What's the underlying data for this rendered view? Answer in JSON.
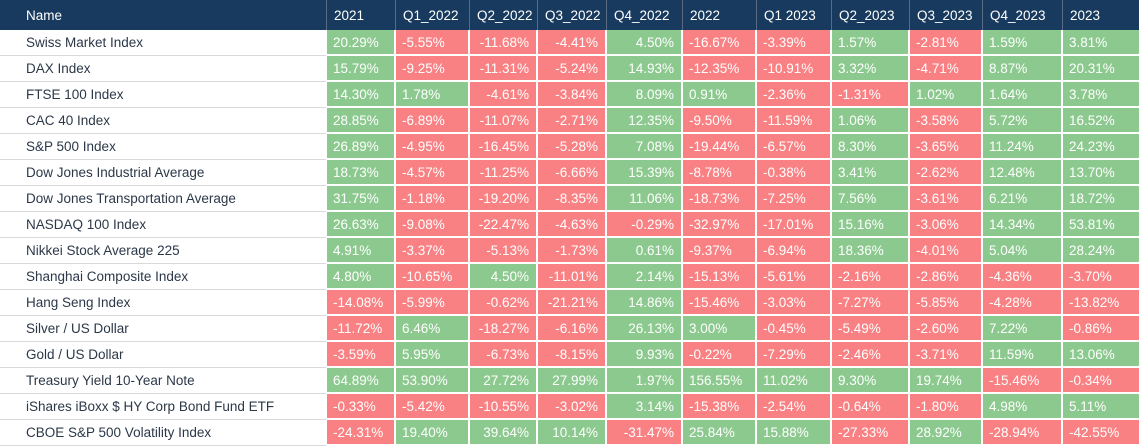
{
  "colors": {
    "header_bg": "#173A5E",
    "header_text": "#FFFFFF",
    "positive_bg": "#8CC98E",
    "negative_bg": "#F98183",
    "cell_text": "#FFFFFF",
    "name_text": "#2B3848"
  },
  "chart_data": {
    "type": "table",
    "title": "",
    "color_rule": "negative values have red background, positive values have green background",
    "columns": [
      {
        "label": "Name",
        "align": "left"
      },
      {
        "label": "2021",
        "align": "left"
      },
      {
        "label": "Q1_2022",
        "align": "left"
      },
      {
        "label": "Q2_2022",
        "align": "right"
      },
      {
        "label": "Q3_2022",
        "align": "right"
      },
      {
        "label": "Q4_2022",
        "align": "right"
      },
      {
        "label": "2022",
        "align": "left"
      },
      {
        "label": "Q1 2023",
        "align": "left"
      },
      {
        "label": "Q2_2023",
        "align": "left"
      },
      {
        "label": "Q3_2023",
        "align": "left"
      },
      {
        "label": "Q4_2023",
        "align": "left"
      },
      {
        "label": "2023",
        "align": "left"
      }
    ],
    "rows": [
      {
        "name": "Swiss Market Index",
        "values": [
          "20.29%",
          "-5.55%",
          "-11.68%",
          "-4.41%",
          "4.50%",
          "-16.67%",
          "-3.39%",
          "1.57%",
          "-2.81%",
          "1.59%",
          "3.81%"
        ]
      },
      {
        "name": "DAX Index",
        "values": [
          "15.79%",
          "-9.25%",
          "-11.31%",
          "-5.24%",
          "14.93%",
          "-12.35%",
          "-10.91%",
          "3.32%",
          "-4.71%",
          "8.87%",
          "20.31%"
        ]
      },
      {
        "name": "FTSE 100 Index",
        "values": [
          "14.30%",
          "1.78%",
          "-4.61%",
          "-3.84%",
          "8.09%",
          "0.91%",
          "-2.36%",
          "-1.31%",
          "1.02%",
          "1.64%",
          "3.78%"
        ]
      },
      {
        "name": "CAC 40 Index",
        "values": [
          "28.85%",
          "-6.89%",
          "-11.07%",
          "-2.71%",
          "12.35%",
          "-9.50%",
          "-11.59%",
          "1.06%",
          "-3.58%",
          "5.72%",
          "16.52%"
        ]
      },
      {
        "name": "S&P 500 Index",
        "values": [
          "26.89%",
          "-4.95%",
          "-16.45%",
          "-5.28%",
          "7.08%",
          "-19.44%",
          "-6.57%",
          "8.30%",
          "-3.65%",
          "11.24%",
          "24.23%"
        ]
      },
      {
        "name": "Dow Jones Industrial Average",
        "values": [
          "18.73%",
          "-4.57%",
          "-11.25%",
          "-6.66%",
          "15.39%",
          "-8.78%",
          "-0.38%",
          "3.41%",
          "-2.62%",
          "12.48%",
          "13.70%"
        ]
      },
      {
        "name": "Dow Jones Transportation Average",
        "values": [
          "31.75%",
          "-1.18%",
          "-19.20%",
          "-8.35%",
          "11.06%",
          "-18.73%",
          "-7.25%",
          "7.56%",
          "-3.61%",
          "6.21%",
          "18.72%"
        ]
      },
      {
        "name": "NASDAQ 100 Index",
        "values": [
          "26.63%",
          "-9.08%",
          "-22.47%",
          "-4.63%",
          "-0.29%",
          "-32.97%",
          "-17.01%",
          "15.16%",
          "-3.06%",
          "14.34%",
          "53.81%"
        ]
      },
      {
        "name": "Nikkei Stock Average 225",
        "values": [
          "4.91%",
          "-3.37%",
          "-5.13%",
          "-1.73%",
          "0.61%",
          "-9.37%",
          "-6.94%",
          "18.36%",
          "-4.01%",
          "5.04%",
          "28.24%"
        ]
      },
      {
        "name": "Shanghai Composite Index",
        "values": [
          "4.80%",
          "-10.65%",
          "4.50%",
          "-11.01%",
          "2.14%",
          "-15.13%",
          "-5.61%",
          "-2.16%",
          "-2.86%",
          "-4.36%",
          "-3.70%"
        ]
      },
      {
        "name": "Hang Seng Index",
        "values": [
          "-14.08%",
          "-5.99%",
          "-0.62%",
          "-21.21%",
          "14.86%",
          "-15.46%",
          "-3.03%",
          "-7.27%",
          "-5.85%",
          "-4.28%",
          "-13.82%"
        ]
      },
      {
        "name": "Silver / US Dollar",
        "values": [
          "-11.72%",
          "6.46%",
          "-18.27%",
          "-6.16%",
          "26.13%",
          "3.00%",
          "-0.45%",
          "-5.49%",
          "-2.60%",
          "7.22%",
          "-0.86%"
        ]
      },
      {
        "name": "Gold / US Dollar",
        "values": [
          "-3.59%",
          "5.95%",
          "-6.73%",
          "-8.15%",
          "9.93%",
          "-0.22%",
          "-7.29%",
          "-2.46%",
          "-3.71%",
          "11.59%",
          "13.06%"
        ]
      },
      {
        "name": "Treasury Yield 10-Year Note",
        "values": [
          "64.89%",
          "53.90%",
          "27.72%",
          "27.99%",
          "1.97%",
          "156.55%",
          "11.02%",
          "9.30%",
          "19.74%",
          "-15.46%",
          "-0.34%"
        ]
      },
      {
        "name": "iShares iBoxx $ HY Corp Bond Fund ETF",
        "values": [
          "-0.33%",
          "-5.42%",
          "-10.55%",
          "-3.02%",
          "3.14%",
          "-15.38%",
          "-2.54%",
          "-0.64%",
          "-1.80%",
          "4.98%",
          "5.11%"
        ]
      },
      {
        "name": "CBOE S&P 500 Volatility Index",
        "values": [
          "-24.31%",
          "19.40%",
          "39.64%",
          "10.14%",
          "-31.47%",
          "25.84%",
          "15.88%",
          "-27.33%",
          "28.92%",
          "-28.94%",
          "-42.55%"
        ]
      }
    ]
  }
}
